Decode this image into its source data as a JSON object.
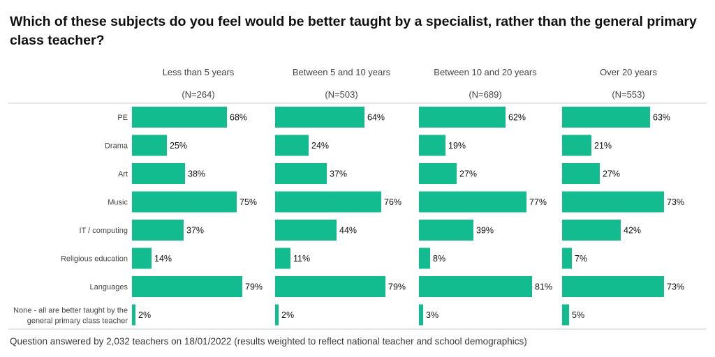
{
  "title": "Which of these subjects do you feel would be better taught by a specialist, rather than the general primary class teacher?",
  "footnote": "Question answered by 2,032 teachers on 18/01/2022 (results weighted to reflect national teacher and school demographics)",
  "colors": {
    "bar": "#13bc8e",
    "rule": "#cccccc",
    "divider": "#e6e6e6"
  },
  "chart_data": {
    "type": "bar",
    "orientation": "horizontal",
    "value_suffix": "%",
    "categories": [
      "PE",
      "Drama",
      "Art",
      "Music",
      "IT / computing",
      "Religious education",
      "Languages",
      [
        "None - all are better taught by the",
        "general primary class teacher"
      ]
    ],
    "series": [
      {
        "name": "Less than 5 years",
        "n": "(N=264)",
        "values": [
          68,
          25,
          38,
          75,
          37,
          14,
          79,
          2
        ]
      },
      {
        "name": "Between 5 and 10 years",
        "n": "(N=503)",
        "values": [
          64,
          24,
          37,
          76,
          44,
          11,
          79,
          2
        ]
      },
      {
        "name": "Between 10 and 20 years",
        "n": "(N=689)",
        "values": [
          62,
          19,
          27,
          77,
          39,
          8,
          81,
          3
        ]
      },
      {
        "name": "Over 20 years",
        "n": "(N=553)",
        "values": [
          63,
          21,
          27,
          73,
          42,
          7,
          73,
          5
        ]
      }
    ]
  }
}
